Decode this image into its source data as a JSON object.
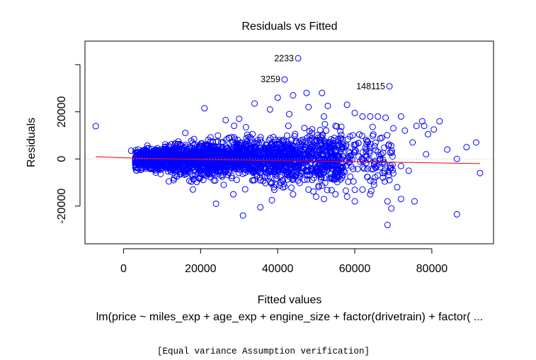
{
  "chart_data": {
    "type": "scatter",
    "title": "Residuals vs Fitted",
    "xlabel": "Fitted values",
    "ylabel": "Residuals",
    "subtitle": "lm(price ~ miles_exp + age_exp + engine_size + factor(drivetrain) + factor( ...",
    "caption": "[Equal variance Assumption verification]",
    "xlim": [
      -10000,
      96000
    ],
    "ylim": [
      -36000,
      50000
    ],
    "x_ticks": [
      0,
      20000,
      40000,
      60000,
      80000
    ],
    "x_tick_labels": [
      "0",
      "20000",
      "40000",
      "60000",
      "80000"
    ],
    "y_ticks": [
      -20000,
      0,
      20000
    ],
    "y_tick_labels": [
      "-20000",
      "0",
      "20000"
    ],
    "y_extra_ticks": [
      40000
    ],
    "grid": false,
    "colors": {
      "points": "#0000ff",
      "smooth": "#ff0000",
      "zero_line": "#aaaaaa"
    },
    "labeled_points": [
      {
        "label": "2233",
        "x": 45300,
        "y": 42700
      },
      {
        "label": "3259",
        "x": 41800,
        "y": 33700
      },
      {
        "label": "148115",
        "x": 69000,
        "y": 30800
      }
    ],
    "outlier_points": [
      {
        "x": -7200,
        "y": 13900
      },
      {
        "x": 21000,
        "y": 21500
      },
      {
        "x": 24000,
        "y": -19000
      },
      {
        "x": 31000,
        "y": -24000
      },
      {
        "x": 35500,
        "y": -20500
      },
      {
        "x": 34000,
        "y": 23500
      },
      {
        "x": 40000,
        "y": 26000
      },
      {
        "x": 44000,
        "y": 27000
      },
      {
        "x": 47500,
        "y": 28000
      },
      {
        "x": 51500,
        "y": 28000
      },
      {
        "x": 53000,
        "y": 22500
      },
      {
        "x": 58000,
        "y": 23000
      },
      {
        "x": 60000,
        "y": 19500
      },
      {
        "x": 62000,
        "y": 18000
      },
      {
        "x": 64000,
        "y": 18000
      },
      {
        "x": 66000,
        "y": 18000
      },
      {
        "x": 68000,
        "y": 17500
      },
      {
        "x": 72000,
        "y": 18000
      },
      {
        "x": 73000,
        "y": 12000
      },
      {
        "x": 76000,
        "y": 14000
      },
      {
        "x": 77500,
        "y": 16000
      },
      {
        "x": 78000,
        "y": 14000
      },
      {
        "x": 79000,
        "y": 10500
      },
      {
        "x": 80500,
        "y": 12500
      },
      {
        "x": 82000,
        "y": 16000
      },
      {
        "x": 78500,
        "y": 2000
      },
      {
        "x": 84000,
        "y": 4000
      },
      {
        "x": 89000,
        "y": 5000
      },
      {
        "x": 91500,
        "y": 7000
      },
      {
        "x": 92500,
        "y": -6000
      },
      {
        "x": 86500,
        "y": 0
      },
      {
        "x": 75000,
        "y": 7000
      },
      {
        "x": 74000,
        "y": -5000
      },
      {
        "x": 72000,
        "y": -3000
      },
      {
        "x": 71000,
        "y": -12000
      },
      {
        "x": 69000,
        "y": -9000
      },
      {
        "x": 68500,
        "y": -18000
      },
      {
        "x": 69500,
        "y": -21000
      },
      {
        "x": 68500,
        "y": -28000
      },
      {
        "x": 72000,
        "y": -17000
      },
      {
        "x": 75500,
        "y": -18000
      },
      {
        "x": 86500,
        "y": -23500
      },
      {
        "x": 64000,
        "y": -15000
      },
      {
        "x": 60000,
        "y": -18000
      },
      {
        "x": 62000,
        "y": -13000
      },
      {
        "x": 65000,
        "y": -11000
      },
      {
        "x": 58000,
        "y": -16000
      },
      {
        "x": 55000,
        "y": -15000
      },
      {
        "x": 52000,
        "y": -17000
      },
      {
        "x": 50000,
        "y": -16000
      },
      {
        "x": 48000,
        "y": -13000
      },
      {
        "x": 44000,
        "y": -15000
      },
      {
        "x": 38500,
        "y": -17500
      },
      {
        "x": 28500,
        "y": -15000
      },
      {
        "x": 26000,
        "y": -11000
      },
      {
        "x": 13000,
        "y": -9000
      },
      {
        "x": 67000,
        "y": 9000
      },
      {
        "x": 70000,
        "y": 13000
      },
      {
        "x": 63000,
        "y": 8000
      },
      {
        "x": 59500,
        "y": 10000
      },
      {
        "x": 55000,
        "y": 14000
      },
      {
        "x": 52000,
        "y": 18000
      },
      {
        "x": 48000,
        "y": 22000
      },
      {
        "x": 43000,
        "y": 19000
      },
      {
        "x": 38000,
        "y": 21000
      },
      {
        "x": 30000,
        "y": 17000
      },
      {
        "x": 26500,
        "y": 16500
      },
      {
        "x": 2000,
        "y": 3500
      },
      {
        "x": 3000,
        "y": -1500
      },
      {
        "x": 66000,
        "y": 3000
      },
      {
        "x": 65000,
        "y": -2000
      },
      {
        "x": 61000,
        "y": 1000
      },
      {
        "x": 57000,
        "y": 6000
      }
    ],
    "dense_cloud": {
      "x_range": [
        3000,
        70000
      ],
      "center_y": 0,
      "n": 2400,
      "spread_at_low_x": 2500,
      "spread_growth": 0.16
    },
    "smooth_line": {
      "x": [
        -7200,
        0,
        10000,
        20000,
        30000,
        40000,
        50000,
        60000,
        70000,
        80000,
        92500
      ],
      "y": [
        900,
        500,
        100,
        -250,
        -500,
        -750,
        -950,
        -1150,
        -1400,
        -1650,
        -2000
      ]
    }
  }
}
